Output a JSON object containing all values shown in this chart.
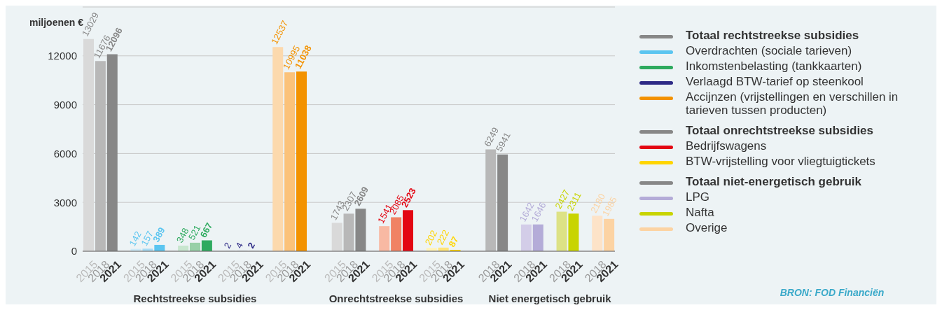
{
  "chart_data": {
    "type": "bar",
    "stacked": true,
    "ylabel": "miljoenen €",
    "ylim": [
      0,
      15000
    ],
    "yticks": [
      0,
      3000,
      6000,
      9000,
      12000
    ],
    "grid": "y",
    "legend": "right",
    "data_labels": true,
    "categories": [
      "2015",
      "2018",
      "2021",
      null,
      "2015",
      "2018",
      "2021",
      null,
      "2015",
      "2018",
      "2021",
      null,
      "2015",
      "2018",
      "2021",
      null,
      "2015",
      "2018",
      "2021",
      null,
      null,
      "2015",
      "2018",
      "2021",
      null,
      "2015",
      "2018",
      "2021",
      null,
      "2015",
      "2018",
      "2021",
      null,
      null,
      "2018",
      "2021",
      null,
      "2018",
      "2021",
      null,
      "2018",
      "2021",
      null,
      "2018",
      "2021"
    ],
    "series": [
      {
        "name": "Totaal rechtstreekse subsidies",
        "color": "#878787",
        "values": [
          13029,
          11676,
          12096,
          null,
          null,
          null,
          null,
          null,
          null,
          null,
          null,
          null,
          null,
          null,
          null,
          null,
          null,
          null,
          null,
          null,
          null,
          null,
          null,
          null,
          null,
          null,
          null,
          null,
          null,
          null,
          null,
          null,
          null,
          null,
          null,
          null,
          null,
          null,
          null,
          null,
          null,
          null,
          null,
          null,
          null
        ],
        "colors": [
          "#d9d9d9",
          "#b8b8b8",
          "#878787",
          null,
          null,
          null,
          null,
          null,
          null,
          null,
          null,
          null,
          null,
          null,
          null,
          null,
          null,
          null,
          null,
          null,
          null,
          null,
          null,
          null,
          null,
          null,
          null,
          null,
          null,
          null,
          null,
          null,
          null,
          null,
          null,
          null,
          null,
          null,
          null,
          null,
          null,
          null,
          null,
          null,
          null
        ]
      },
      {
        "name": "Overdrachten (sociale tarieven)",
        "color": "#5bc5f0",
        "values": [
          null,
          null,
          null,
          null,
          142,
          157,
          389,
          null,
          null,
          null,
          null,
          null,
          null,
          null,
          null,
          null,
          null,
          null,
          null,
          null,
          null,
          null,
          null,
          null,
          null,
          null,
          null,
          null,
          null,
          null,
          null,
          null,
          null,
          null,
          null,
          null,
          null,
          null,
          null,
          null,
          null,
          null,
          null,
          null,
          null
        ],
        "colors": [
          null,
          null,
          null,
          null,
          "#cdeaf8",
          "#a8dcf5",
          "#5bc5f0",
          null,
          null,
          null,
          null,
          null,
          null,
          null,
          null,
          null,
          null,
          null,
          null,
          null,
          null,
          null,
          null,
          null,
          null,
          null,
          null,
          null,
          null,
          null,
          null,
          null,
          null,
          null,
          null,
          null,
          null,
          null,
          null,
          null,
          null,
          null,
          null,
          null,
          null
        ]
      },
      {
        "name": "Inkomstenbelasting (tankkaarten)",
        "color": "#2eaa5f",
        "values": [
          null,
          null,
          null,
          null,
          null,
          null,
          null,
          null,
          348,
          521,
          667,
          null,
          null,
          null,
          null,
          null,
          null,
          null,
          null,
          null,
          null,
          null,
          null,
          null,
          null,
          null,
          null,
          null,
          null,
          null,
          null,
          null,
          null,
          null,
          null,
          null,
          null,
          null,
          null,
          null,
          null,
          null,
          null,
          null,
          null
        ],
        "colors": [
          null,
          null,
          null,
          null,
          null,
          null,
          null,
          null,
          "#c8e6cf",
          "#98d0a7",
          "#2eaa5f",
          null,
          null,
          null,
          null,
          null,
          null,
          null,
          null,
          null,
          null,
          null,
          null,
          null,
          null,
          null,
          null,
          null,
          null,
          null,
          null,
          null,
          null,
          null,
          null,
          null,
          null,
          null,
          null,
          null,
          null,
          null,
          null,
          null,
          null
        ]
      },
      {
        "name": "Verlaagd BTW-tarief op steenkool",
        "color": "#2e2a86",
        "values": [
          null,
          null,
          null,
          null,
          null,
          null,
          null,
          null,
          null,
          null,
          null,
          null,
          2,
          4,
          2,
          null,
          null,
          null,
          null,
          null,
          null,
          null,
          null,
          null,
          null,
          null,
          null,
          null,
          null,
          null,
          null,
          null,
          null,
          null,
          null,
          null,
          null,
          null,
          null,
          null,
          null,
          null,
          null,
          null,
          null
        ],
        "colors": [
          null,
          null,
          null,
          null,
          null,
          null,
          null,
          null,
          null,
          null,
          null,
          null,
          "#2e2a86",
          "#2e2a86",
          "#1a1a40",
          null,
          null,
          null,
          null,
          null,
          null,
          null,
          null,
          null,
          null,
          null,
          null,
          null,
          null,
          null,
          null,
          null,
          null,
          null,
          null,
          null,
          null,
          null,
          null,
          null,
          null,
          null,
          null,
          null,
          null
        ]
      },
      {
        "name": "Accijnzen (vrijstellingen en verschillen in tarieven tussen producten)",
        "color": "#f39200",
        "values": [
          null,
          null,
          null,
          null,
          null,
          null,
          null,
          null,
          null,
          null,
          null,
          null,
          null,
          null,
          null,
          null,
          12537,
          10995,
          11038,
          null,
          null,
          null,
          null,
          null,
          null,
          null,
          null,
          null,
          null,
          null,
          null,
          null,
          null,
          null,
          null,
          null,
          null,
          null,
          null,
          null,
          null,
          null,
          null,
          null,
          null
        ],
        "colors": [
          null,
          null,
          null,
          null,
          null,
          null,
          null,
          null,
          null,
          null,
          null,
          null,
          null,
          null,
          null,
          null,
          "#fcd9ad",
          "#fbc27a",
          "#f39200",
          null,
          null,
          null,
          null,
          null,
          null,
          null,
          null,
          null,
          null,
          null,
          null,
          null,
          null,
          null,
          null,
          null,
          null,
          null,
          null,
          null,
          null,
          null,
          null,
          null,
          null
        ]
      },
      {
        "name": "Totaal onrechtstreekse subsidies",
        "color": "#878787",
        "values": [
          null,
          null,
          null,
          null,
          null,
          null,
          null,
          null,
          null,
          null,
          null,
          null,
          null,
          null,
          null,
          null,
          null,
          null,
          null,
          null,
          null,
          1743,
          2307,
          2609,
          null,
          null,
          null,
          null,
          null,
          null,
          null,
          null,
          null,
          null,
          null,
          null,
          null,
          null,
          null,
          null,
          null,
          null,
          null,
          null,
          null
        ],
        "colors": [
          null,
          null,
          null,
          null,
          null,
          null,
          null,
          null,
          null,
          null,
          null,
          null,
          null,
          null,
          null,
          null,
          null,
          null,
          null,
          null,
          null,
          "#d9d9d9",
          "#b8b8b8",
          "#878787",
          null,
          null,
          null,
          null,
          null,
          null,
          null,
          null,
          null,
          null,
          null,
          null,
          null,
          null,
          null,
          null,
          null,
          null,
          null,
          null,
          null
        ]
      },
      {
        "name": "Bedrijfswagens",
        "color": "#e30613",
        "values": [
          null,
          null,
          null,
          null,
          null,
          null,
          null,
          null,
          null,
          null,
          null,
          null,
          null,
          null,
          null,
          null,
          null,
          null,
          null,
          null,
          null,
          null,
          null,
          null,
          null,
          1541,
          2085,
          2523,
          null,
          null,
          null,
          null,
          null,
          null,
          null,
          null,
          null,
          null,
          null,
          null,
          null,
          null,
          null,
          null,
          null
        ],
        "colors": [
          null,
          null,
          null,
          null,
          null,
          null,
          null,
          null,
          null,
          null,
          null,
          null,
          null,
          null,
          null,
          null,
          null,
          null,
          null,
          null,
          null,
          null,
          null,
          null,
          null,
          "#f8b9a3",
          "#f08264",
          "#e30613",
          null,
          null,
          null,
          null,
          null,
          null,
          null,
          null,
          null,
          null,
          null,
          null,
          null,
          null,
          null,
          null,
          null
        ]
      },
      {
        "name": "BTW-vrijstelling voor vliegtuigtickets",
        "color": "#ffd500",
        "values": [
          null,
          null,
          null,
          null,
          null,
          null,
          null,
          null,
          null,
          null,
          null,
          null,
          null,
          null,
          null,
          null,
          null,
          null,
          null,
          null,
          null,
          null,
          null,
          null,
          null,
          null,
          null,
          null,
          null,
          202,
          222,
          87,
          null,
          null,
          null,
          null,
          null,
          null,
          null,
          null,
          null,
          null,
          null,
          null,
          null
        ],
        "colors": [
          null,
          null,
          null,
          null,
          null,
          null,
          null,
          null,
          null,
          null,
          null,
          null,
          null,
          null,
          null,
          null,
          null,
          null,
          null,
          null,
          null,
          null,
          null,
          null,
          null,
          null,
          null,
          null,
          null,
          "#fff3b8",
          "#ffe57a",
          "#ffd500",
          null,
          null,
          null,
          null,
          null,
          null,
          null,
          null,
          null,
          null,
          null,
          null,
          null
        ]
      },
      {
        "name": "Totaal niet-energetisch gebruik",
        "color": "#878787",
        "values": [
          null,
          null,
          null,
          null,
          null,
          null,
          null,
          null,
          null,
          null,
          null,
          null,
          null,
          null,
          null,
          null,
          null,
          null,
          null,
          null,
          null,
          null,
          null,
          null,
          null,
          null,
          null,
          null,
          null,
          null,
          null,
          null,
          null,
          null,
          6249,
          5941,
          null,
          null,
          null,
          null,
          null,
          null,
          null,
          null,
          null
        ],
        "colors": [
          null,
          null,
          null,
          null,
          null,
          null,
          null,
          null,
          null,
          null,
          null,
          null,
          null,
          null,
          null,
          null,
          null,
          null,
          null,
          null,
          null,
          null,
          null,
          null,
          null,
          null,
          null,
          null,
          null,
          null,
          null,
          null,
          null,
          null,
          "#b8b8b8",
          "#878787",
          null,
          null,
          null,
          null,
          null,
          null,
          null,
          null,
          null
        ]
      },
      {
        "name": "LPG",
        "color": "#b4acd8",
        "values": [
          null,
          null,
          null,
          null,
          null,
          null,
          null,
          null,
          null,
          null,
          null,
          null,
          null,
          null,
          null,
          null,
          null,
          null,
          null,
          null,
          null,
          null,
          null,
          null,
          null,
          null,
          null,
          null,
          null,
          null,
          null,
          null,
          null,
          null,
          null,
          null,
          null,
          1642,
          1646,
          null,
          null,
          null,
          null,
          null,
          null
        ],
        "colors": [
          null,
          null,
          null,
          null,
          null,
          null,
          null,
          null,
          null,
          null,
          null,
          null,
          null,
          null,
          null,
          null,
          null,
          null,
          null,
          null,
          null,
          null,
          null,
          null,
          null,
          null,
          null,
          null,
          null,
          null,
          null,
          null,
          null,
          null,
          null,
          null,
          null,
          "#d3cde8",
          "#b4acd8",
          null,
          null,
          null,
          null,
          null,
          null
        ]
      },
      {
        "name": "Nafta",
        "color": "#c8d400",
        "values": [
          null,
          null,
          null,
          null,
          null,
          null,
          null,
          null,
          null,
          null,
          null,
          null,
          null,
          null,
          null,
          null,
          null,
          null,
          null,
          null,
          null,
          null,
          null,
          null,
          null,
          null,
          null,
          null,
          null,
          null,
          null,
          null,
          null,
          null,
          null,
          null,
          null,
          null,
          null,
          null,
          2427,
          2311,
          null,
          null,
          null
        ],
        "colors": [
          null,
          null,
          null,
          null,
          null,
          null,
          null,
          null,
          null,
          null,
          null,
          null,
          null,
          null,
          null,
          null,
          null,
          null,
          null,
          null,
          null,
          null,
          null,
          null,
          null,
          null,
          null,
          null,
          null,
          null,
          null,
          null,
          null,
          null,
          null,
          null,
          null,
          null,
          null,
          null,
          "#dde285",
          "#c8d400",
          null,
          null,
          null
        ]
      },
      {
        "name": "Overige",
        "color": "#fcd3a3",
        "values": [
          null,
          null,
          null,
          null,
          null,
          null,
          null,
          null,
          null,
          null,
          null,
          null,
          null,
          null,
          null,
          null,
          null,
          null,
          null,
          null,
          null,
          null,
          null,
          null,
          null,
          null,
          null,
          null,
          null,
          null,
          null,
          null,
          null,
          null,
          null,
          null,
          null,
          null,
          null,
          null,
          null,
          null,
          null,
          2180,
          1985
        ],
        "colors": [
          null,
          null,
          null,
          null,
          null,
          null,
          null,
          null,
          null,
          null,
          null,
          null,
          null,
          null,
          null,
          null,
          null,
          null,
          null,
          null,
          null,
          null,
          null,
          null,
          null,
          null,
          null,
          null,
          null,
          null,
          null,
          null,
          null,
          null,
          null,
          null,
          null,
          null,
          null,
          null,
          null,
          null,
          null,
          "#fde3c8",
          "#fcd3a3"
        ]
      }
    ],
    "annotations": [
      "Rechtstreekse subsidies",
      "Onrechtstreekse subsidies",
      "Niet energetisch gebruik",
      "BRON: FOD Financiën"
    ]
  }
}
